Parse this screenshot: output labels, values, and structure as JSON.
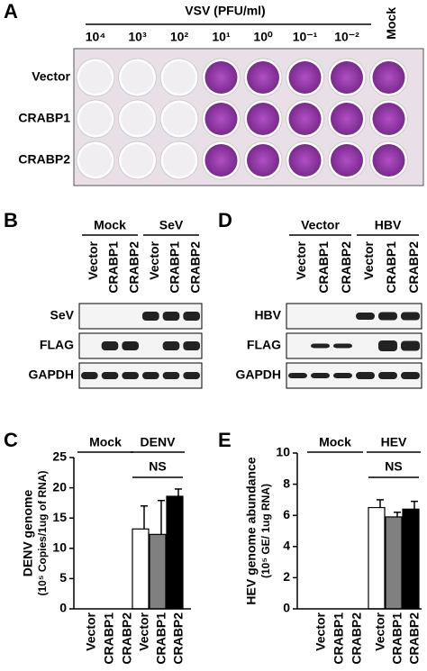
{
  "panel_a": {
    "label": "A",
    "title": "VSV (PFU/ml)",
    "columns": [
      "10⁴",
      "10³",
      "10²",
      "10¹",
      "10⁰",
      "10⁻¹",
      "10⁻²",
      "Mock"
    ],
    "rows": [
      "Vector",
      "CRABP1",
      "CRABP2"
    ]
  },
  "panel_b": {
    "label": "B",
    "groups": [
      "Mock",
      "SeV"
    ],
    "lanes": [
      "Vector",
      "CRABP1",
      "CRABP2",
      "Vector",
      "CRABP1",
      "CRABP2"
    ],
    "rows": [
      "SeV",
      "FLAG",
      "GAPDH"
    ]
  },
  "panel_d": {
    "label": "D",
    "groups": [
      "Vector",
      "HBV"
    ],
    "lanes": [
      "Vector",
      "CRABP1",
      "CRABP2",
      "Vector",
      "CRABP1",
      "CRABP2"
    ],
    "rows": [
      "HBV",
      "FLAG",
      "GAPDH"
    ]
  },
  "chart_data": [
    {
      "type": "bar",
      "label": "C",
      "ylabel": [
        "DENV genome",
        "(10⁵ Copies/1ug of RNA)"
      ],
      "groups": [
        "Mock",
        "DENV"
      ],
      "annotation": "NS",
      "categories": [
        "Vector",
        "CRABP1",
        "CRABP2",
        "Vector",
        "CRABP1",
        "CRABP2"
      ],
      "values": [
        null,
        null,
        null,
        13.2,
        12.3,
        18.6
      ],
      "errors": [
        null,
        null,
        null,
        3.8,
        5.6,
        1.2
      ],
      "colors": [
        "#ffffff",
        "#808080",
        "#000000",
        "#ffffff",
        "#808080",
        "#000000"
      ],
      "ylim": [
        0,
        25
      ],
      "yticks": [
        0,
        5,
        10,
        15,
        20,
        25
      ]
    },
    {
      "type": "bar",
      "label": "E",
      "ylabel": [
        "HEV genome abundance",
        "(10⁵ GE/ 1ug RNA)"
      ],
      "groups": [
        "Mock",
        "HEV"
      ],
      "annotation": "NS",
      "categories": [
        "Vector",
        "CRABP1",
        "CRABP2",
        "Vector",
        "CRABP1",
        "CRABP2"
      ],
      "values": [
        null,
        null,
        null,
        6.5,
        5.9,
        6.4
      ],
      "errors": [
        null,
        null,
        null,
        0.5,
        0.3,
        0.5
      ],
      "colors": [
        "#ffffff",
        "#808080",
        "#000000",
        "#ffffff",
        "#808080",
        "#000000"
      ],
      "ylim": [
        0,
        10
      ],
      "yticks": [
        0,
        2,
        4,
        6,
        8,
        10
      ]
    }
  ]
}
